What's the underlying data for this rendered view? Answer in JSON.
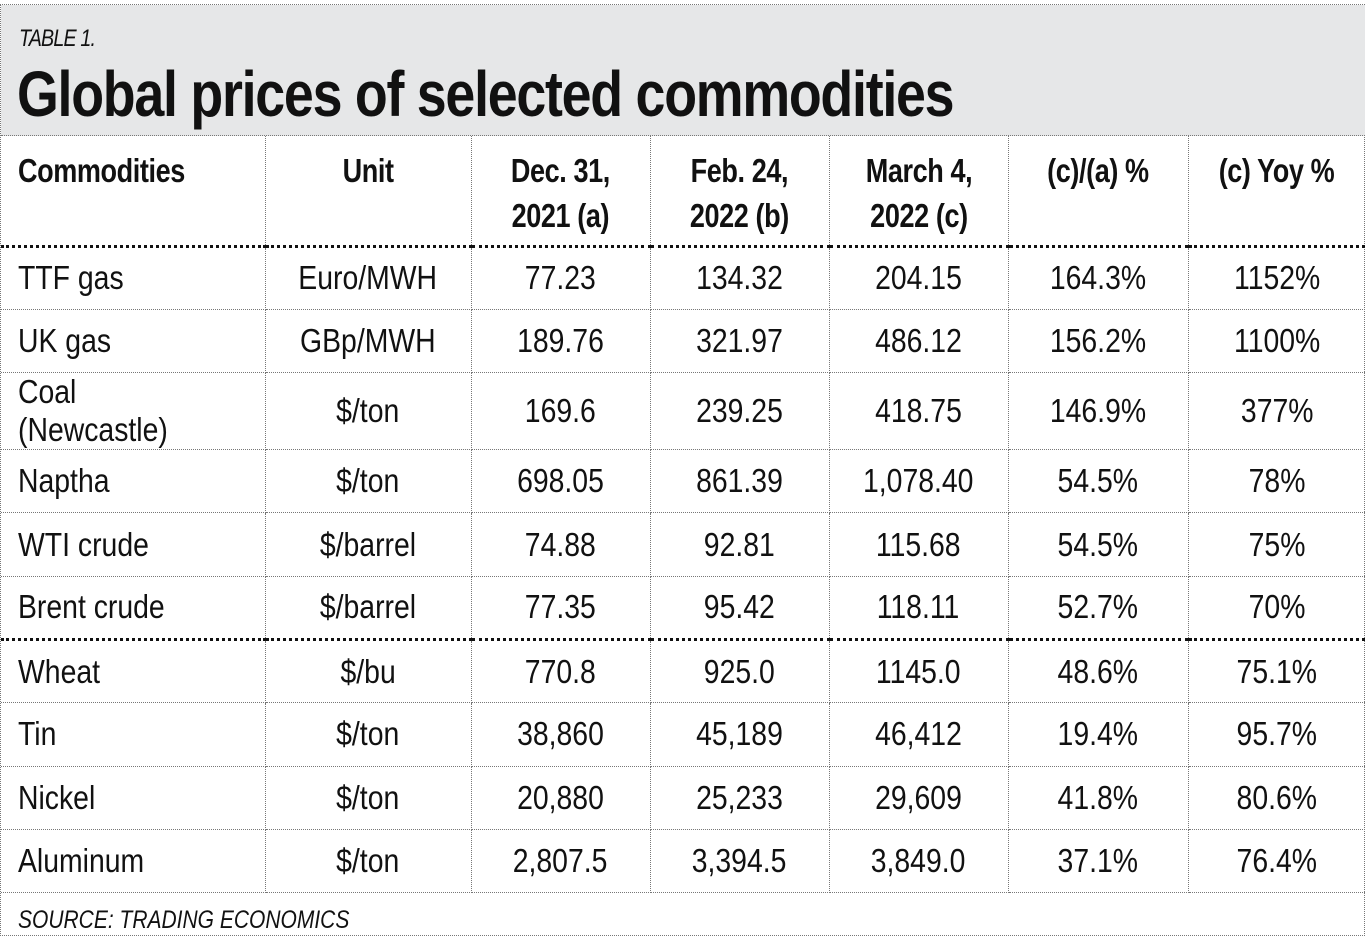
{
  "header": {
    "label": "TABLE 1.",
    "title": "Global prices of selected commodities"
  },
  "table": {
    "columns": [
      {
        "line1": "Commodities",
        "line2": ""
      },
      {
        "line1": "Unit",
        "line2": ""
      },
      {
        "line1": "Dec. 31,",
        "line2": "2021 (a)"
      },
      {
        "line1": "Feb. 24,",
        "line2": "2022 (b)"
      },
      {
        "line1": "March 4,",
        "line2": "2022 (c)"
      },
      {
        "line1": "(c)/(a) %",
        "line2": ""
      },
      {
        "line1": "(c) Yoy %",
        "line2": ""
      }
    ],
    "rows": [
      [
        "TTF gas",
        "Euro/MWH",
        "77.23",
        "134.32",
        "204.15",
        "164.3%",
        "1152%"
      ],
      [
        "UK gas",
        "GBp/MWH",
        "189.76",
        "321.97",
        "486.12",
        "156.2%",
        "1100%"
      ],
      [
        "Coal (Newcastle)",
        "$/ton",
        "169.6",
        "239.25",
        "418.75",
        "146.9%",
        "377%"
      ],
      [
        "Naptha",
        "$/ton",
        "698.05",
        "861.39",
        "1,078.40",
        "54.5%",
        "78%"
      ],
      [
        "WTI crude",
        "$/barrel",
        "74.88",
        "92.81",
        "115.68",
        "54.5%",
        "75%"
      ],
      [
        "Brent crude",
        "$/barrel",
        "77.35",
        "95.42",
        "118.11",
        "52.7%",
        "70%"
      ],
      [
        "Wheat",
        "$/bu",
        "770.8",
        "925.0",
        "1145.0",
        "48.6%",
        "75.1%"
      ],
      [
        "Tin",
        "$/ton",
        "38,860",
        "45,189",
        "46,412",
        "19.4%",
        "95.7%"
      ],
      [
        "Nickel",
        "$/ton",
        "20,880",
        "25,233",
        "29,609",
        "41.8%",
        "80.6%"
      ],
      [
        "Aluminum",
        "$/ton",
        "2,807.5",
        "3,394.5",
        "3,849.0",
        "37.1%",
        "76.4%"
      ]
    ]
  },
  "footer": {
    "source": "SOURCE: TRADING ECONOMICS"
  },
  "colors": {
    "title_background": "#e6e7e8",
    "text": "#111111"
  }
}
